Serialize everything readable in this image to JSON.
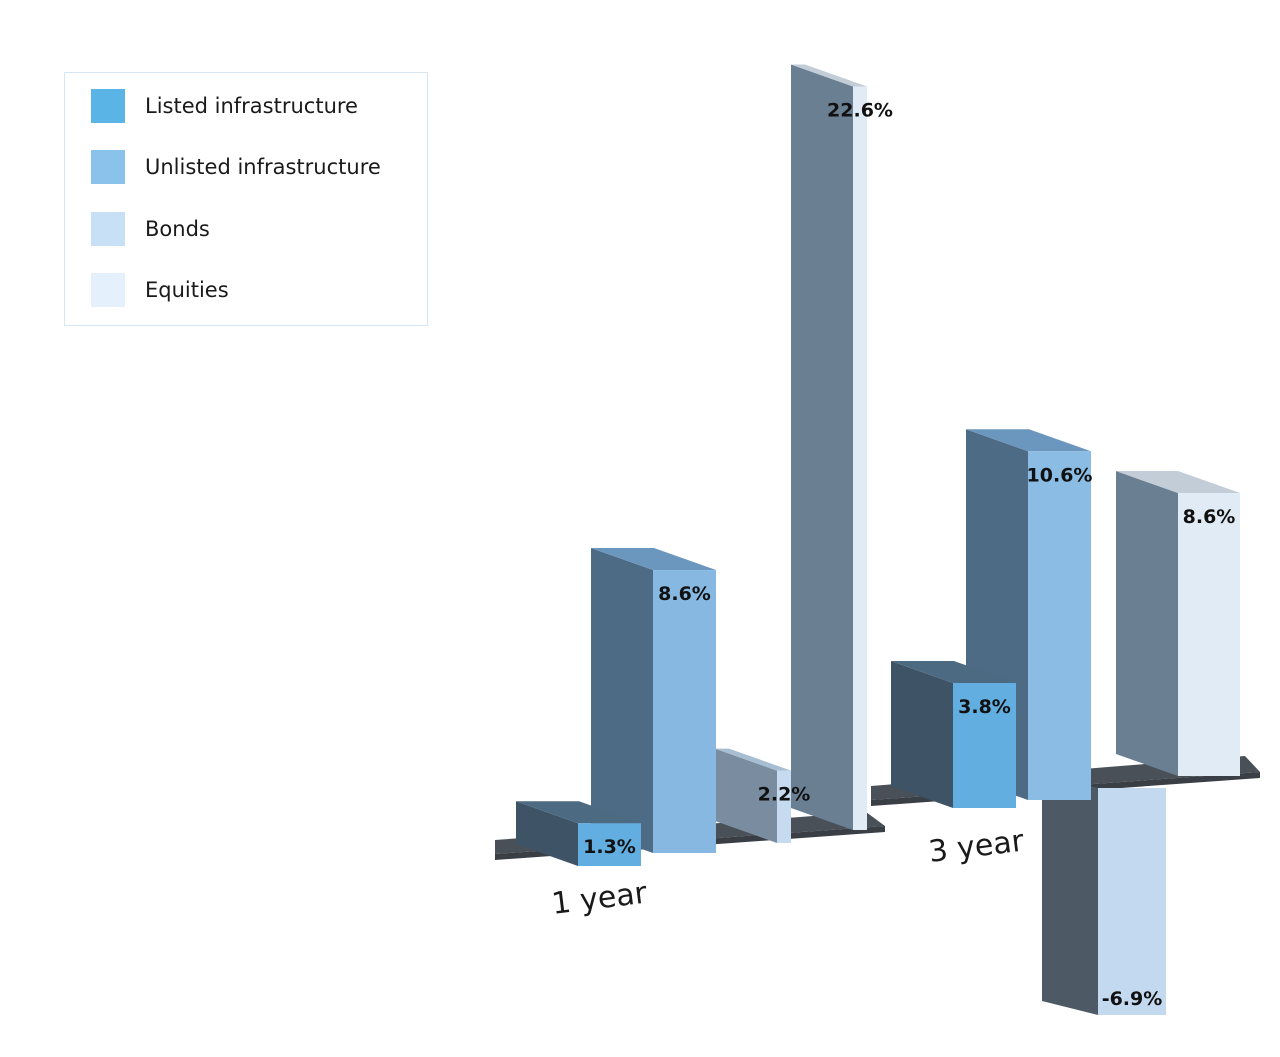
{
  "legend": {
    "items": [
      {
        "label": "Listed infrastructure",
        "color": "#5ab4e6"
      },
      {
        "label": "Unlisted infrastructure",
        "color": "#89c3ec"
      },
      {
        "label": "Bonds",
        "color": "#c8e0f5"
      },
      {
        "label": "Equities",
        "color": "#e4f0fb"
      }
    ]
  },
  "chart_data": {
    "type": "bar",
    "categories": [
      "1 year",
      "3 year"
    ],
    "series": [
      {
        "name": "Listed infrastructure",
        "values": [
          1.3,
          3.8
        ],
        "labels": [
          "1.3%",
          "3.8%"
        ]
      },
      {
        "name": "Unlisted infrastructure",
        "values": [
          8.6,
          10.6
        ],
        "labels": [
          "8.6%",
          "10.6%"
        ]
      },
      {
        "name": "Bonds",
        "values": [
          2.2,
          -6.9
        ],
        "labels": [
          "2.2%",
          "-6.9%"
        ]
      },
      {
        "name": "Equities",
        "values": [
          22.6,
          8.6
        ],
        "labels": [
          "22.6%",
          "8.6%"
        ]
      }
    ],
    "style": "3d-bar",
    "legend_position": "top-left",
    "grid": false,
    "bar_front_colors": [
      [
        "#62aee0",
        "#86b8e2",
        "#c7dbf0",
        "#e0ebf6"
      ],
      [
        "#62aee0",
        "#8bbce4",
        "#c3d9ef",
        "#e0ebf6"
      ]
    ]
  }
}
